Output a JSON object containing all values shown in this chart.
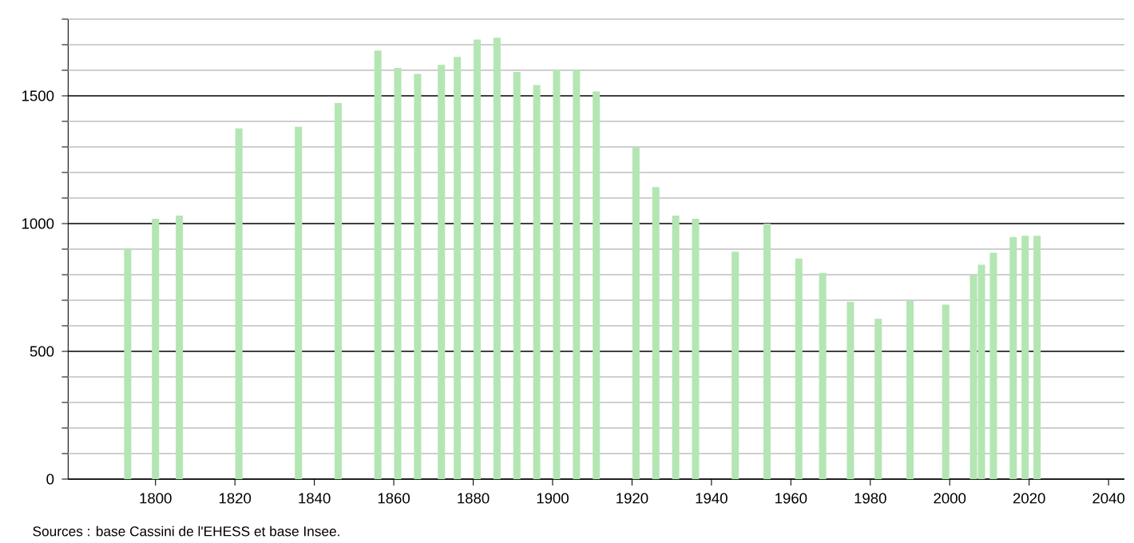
{
  "chart_data": {
    "type": "bar",
    "color": "#b3e6b3",
    "x": [
      1793,
      1800,
      1806,
      1821,
      1836,
      1846,
      1856,
      1861,
      1866,
      1872,
      1876,
      1881,
      1886,
      1891,
      1896,
      1901,
      1906,
      1911,
      1921,
      1926,
      1931,
      1936,
      1946,
      1954,
      1962,
      1968,
      1975,
      1982,
      1990,
      1999,
      2006,
      2008,
      2011,
      2016,
      2019,
      2022
    ],
    "values": [
      900,
      1019,
      1031,
      1373,
      1379,
      1472,
      1677,
      1609,
      1586,
      1621,
      1652,
      1720,
      1727,
      1594,
      1542,
      1602,
      1602,
      1517,
      1298,
      1143,
      1031,
      1019,
      890,
      1000,
      863,
      807,
      694,
      627,
      697,
      683,
      797,
      839,
      886,
      948,
      952,
      952
    ],
    "xlim": [
      1778,
      2044
    ],
    "xticks": [
      1800,
      1820,
      1840,
      1860,
      1880,
      1900,
      1920,
      1940,
      1960,
      1980,
      2000,
      2020,
      2040
    ],
    "ylim": [
      0,
      1800
    ],
    "yticks": [
      0,
      {
        "value": 100,
        "label": null
      },
      {
        "value": 200,
        "label": null
      },
      {
        "value": 300,
        "label": null
      },
      {
        "value": 400,
        "label": null
      },
      500,
      {
        "value": 600,
        "label": null
      },
      {
        "value": 700,
        "label": null
      },
      {
        "value": 800,
        "label": null
      },
      {
        "value": 900,
        "label": null
      },
      1000,
      {
        "value": 1100,
        "label": null
      },
      {
        "value": 1200,
        "label": null
      },
      {
        "value": 1300,
        "label": null
      },
      {
        "value": 1400,
        "label": null
      },
      1500,
      {
        "value": 1600,
        "label": null
      },
      {
        "value": 1700,
        "label": null
      },
      {
        "value": 1800,
        "label": null
      }
    ],
    "grid": "y",
    "annotations": [
      "Sources : base Cassini de l'EHESS et base Insee."
    ]
  }
}
